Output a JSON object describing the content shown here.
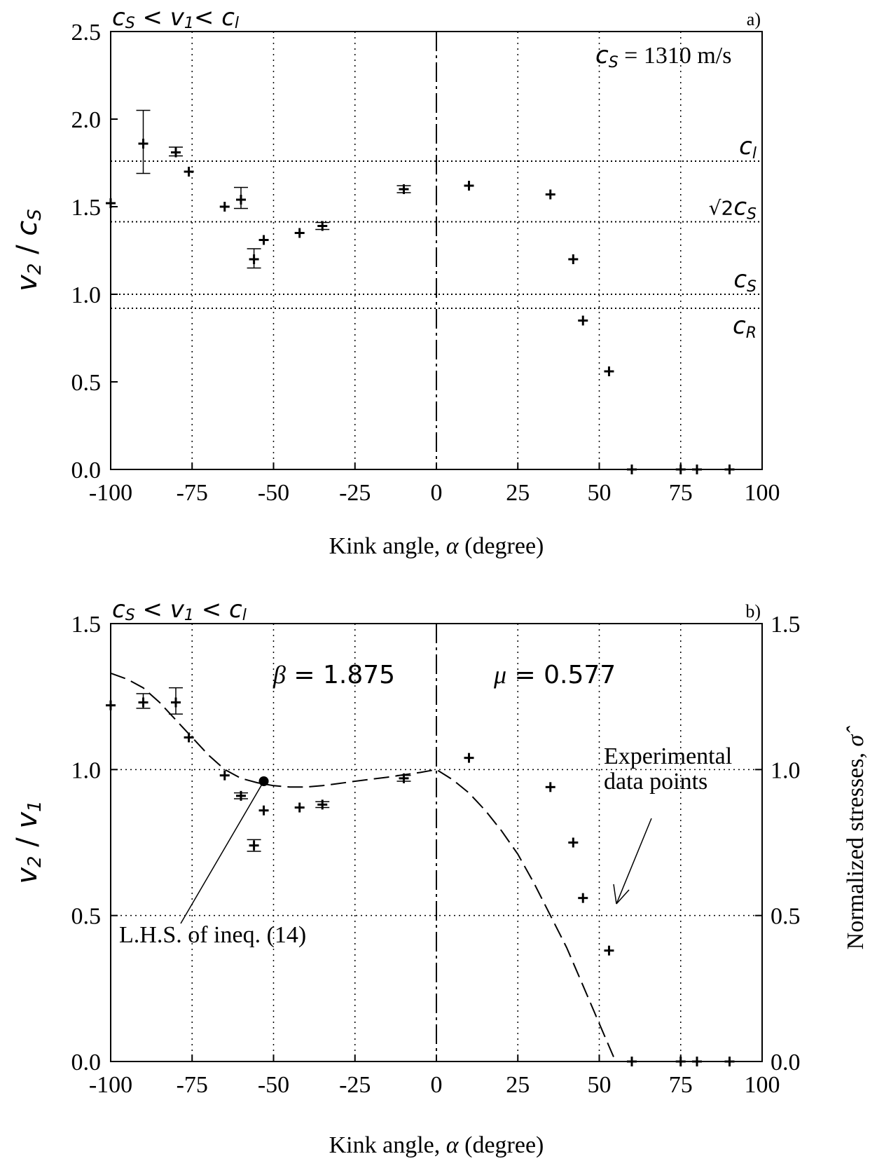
{
  "chart_data": [
    {
      "type": "scatter",
      "panel_label": "a)",
      "title_parts": {
        "a": "c",
        "a_sub": "S",
        "op1": " < ",
        "b": "v",
        "b_sub": "1",
        "op2": "< ",
        "c": "c",
        "c_sub": "l"
      },
      "annotation": {
        "sym": "c",
        "sub": "S",
        "rest": " = 1310 m/s"
      },
      "xlabel": {
        "pre": "Kink angle, ",
        "sym": "α",
        "post": " (degree)"
      },
      "ylabel": {
        "a": "v",
        "a_sub": "2",
        "mid": " / ",
        "b": "c",
        "b_sub": "S"
      },
      "xlim": [
        -100,
        100
      ],
      "ylim": [
        0,
        2.5
      ],
      "x_ticks": [
        "-100",
        "-75",
        "-50",
        "-25",
        "0",
        "25",
        "50",
        "75",
        "100"
      ],
      "y_ticks": [
        "0.0",
        "0.5",
        "1.0",
        "1.5",
        "2.0",
        "2.5"
      ],
      "grid": "vertical dotted",
      "reference_lines": [
        {
          "y": 1.76,
          "label": "c",
          "sub": "l",
          "prefix": ""
        },
        {
          "y": 1.414,
          "label": "c",
          "sub": "S",
          "prefix": "√2"
        },
        {
          "y": 1.0,
          "label": "c",
          "sub": "S",
          "prefix": ""
        },
        {
          "y": 0.92,
          "label": "c",
          "sub": "R",
          "prefix": ""
        }
      ],
      "points": [
        {
          "x": -100,
          "y": 1.52
        },
        {
          "x": -90,
          "y": 1.86,
          "err": [
            1.69,
            2.05
          ]
        },
        {
          "x": -80,
          "y": 1.81,
          "err": [
            1.79,
            1.84
          ]
        },
        {
          "x": -76,
          "y": 1.7
        },
        {
          "x": -65,
          "y": 1.5
        },
        {
          "x": -60,
          "y": 1.54,
          "err": [
            1.49,
            1.61
          ]
        },
        {
          "x": -56,
          "y": 1.2,
          "err": [
            1.15,
            1.26
          ]
        },
        {
          "x": -53,
          "y": 1.31
        },
        {
          "x": -42,
          "y": 1.35
        },
        {
          "x": -35,
          "y": 1.39,
          "err": [
            1.37,
            1.41
          ]
        },
        {
          "x": -10,
          "y": 1.6,
          "err": [
            1.58,
            1.62
          ]
        },
        {
          "x": 10,
          "y": 1.62
        },
        {
          "x": 35,
          "y": 1.57
        },
        {
          "x": 42,
          "y": 1.2
        },
        {
          "x": 45,
          "y": 0.85
        },
        {
          "x": 53,
          "y": 0.56
        },
        {
          "x": 60,
          "y": 0.0
        },
        {
          "x": 75,
          "y": 0.0
        },
        {
          "x": 80,
          "y": 0.0
        },
        {
          "x": 90,
          "y": 0.0
        }
      ]
    },
    {
      "type": "scatter",
      "panel_label": "b)",
      "title_parts": {
        "a": "c",
        "a_sub": "S",
        "op1": " < ",
        "b": "v",
        "b_sub": "1",
        "op2": " < ",
        "c": "c",
        "c_sub": "l"
      },
      "xlabel": {
        "pre": "Kink angle, ",
        "sym": "α",
        "post": " (degree)"
      },
      "ylabel": {
        "a": "v",
        "a_sub": "2",
        "mid": " / ",
        "b": "v",
        "b_sub": "1"
      },
      "y2label": "Normalized stresses, ",
      "y2sym": "σ̂",
      "xlim": [
        -100,
        100
      ],
      "ylim": [
        0,
        1.5
      ],
      "x_ticks": [
        "-100",
        "-75",
        "-50",
        "-25",
        "0",
        "25",
        "50",
        "75",
        "100"
      ],
      "y_ticks": [
        "0.0",
        "0.5",
        "1.0",
        "1.5"
      ],
      "y2_ticks": [
        "0.0",
        "0.5",
        "1.0",
        "1.5"
      ],
      "grid": "vertical dotted, horizontal dotted at 0.5 and 1.0",
      "param_beta": {
        "sym": "β",
        "rest": " = 1.875"
      },
      "param_mu": {
        "sym": "μ",
        "rest": " = 0.577"
      },
      "annotation_points": "Experimental",
      "annotation_points2": "data points",
      "annotation_lhs": "L.H.S. of ineq. (14)",
      "lhs_marker": {
        "x": -53,
        "y": 0.96
      },
      "points": [
        {
          "x": -100,
          "y": 1.22
        },
        {
          "x": -90,
          "y": 1.23,
          "err": [
            1.21,
            1.26
          ]
        },
        {
          "x": -80,
          "y": 1.23,
          "err": [
            1.19,
            1.28
          ]
        },
        {
          "x": -76,
          "y": 1.11
        },
        {
          "x": -65,
          "y": 0.98
        },
        {
          "x": -60,
          "y": 0.91,
          "err": [
            0.9,
            0.92
          ]
        },
        {
          "x": -56,
          "y": 0.74,
          "err": [
            0.72,
            0.76
          ]
        },
        {
          "x": -53,
          "y": 0.86
        },
        {
          "x": -42,
          "y": 0.87
        },
        {
          "x": -35,
          "y": 0.88,
          "err": [
            0.87,
            0.89
          ]
        },
        {
          "x": -10,
          "y": 0.97,
          "err": [
            0.96,
            0.98
          ]
        },
        {
          "x": 10,
          "y": 1.04
        },
        {
          "x": 35,
          "y": 0.94
        },
        {
          "x": 42,
          "y": 0.75
        },
        {
          "x": 45,
          "y": 0.56
        },
        {
          "x": 53,
          "y": 0.38
        },
        {
          "x": 60,
          "y": 0.0
        },
        {
          "x": 75,
          "y": 0.0
        },
        {
          "x": 80,
          "y": 0.0
        },
        {
          "x": 90,
          "y": 0.0
        }
      ],
      "curve": [
        {
          "x": -100,
          "y": 1.33
        },
        {
          "x": -95,
          "y": 1.31
        },
        {
          "x": -90,
          "y": 1.28
        },
        {
          "x": -85,
          "y": 1.23
        },
        {
          "x": -80,
          "y": 1.17
        },
        {
          "x": -75,
          "y": 1.11
        },
        {
          "x": -70,
          "y": 1.05
        },
        {
          "x": -65,
          "y": 1.0
        },
        {
          "x": -60,
          "y": 0.97
        },
        {
          "x": -55,
          "y": 0.955
        },
        {
          "x": -50,
          "y": 0.945
        },
        {
          "x": -45,
          "y": 0.94
        },
        {
          "x": -40,
          "y": 0.94
        },
        {
          "x": -35,
          "y": 0.945
        },
        {
          "x": -30,
          "y": 0.952
        },
        {
          "x": -25,
          "y": 0.96
        },
        {
          "x": -20,
          "y": 0.967
        },
        {
          "x": -15,
          "y": 0.974
        },
        {
          "x": -10,
          "y": 0.982
        },
        {
          "x": -5,
          "y": 0.99
        },
        {
          "x": 0,
          "y": 1.0
        },
        {
          "x": 5,
          "y": 0.965
        },
        {
          "x": 10,
          "y": 0.92
        },
        {
          "x": 15,
          "y": 0.86
        },
        {
          "x": 20,
          "y": 0.79
        },
        {
          "x": 25,
          "y": 0.71
        },
        {
          "x": 30,
          "y": 0.61
        },
        {
          "x": 35,
          "y": 0.5
        },
        {
          "x": 40,
          "y": 0.39
        },
        {
          "x": 45,
          "y": 0.26
        },
        {
          "x": 50,
          "y": 0.13
        },
        {
          "x": 55,
          "y": 0.0
        }
      ]
    }
  ]
}
